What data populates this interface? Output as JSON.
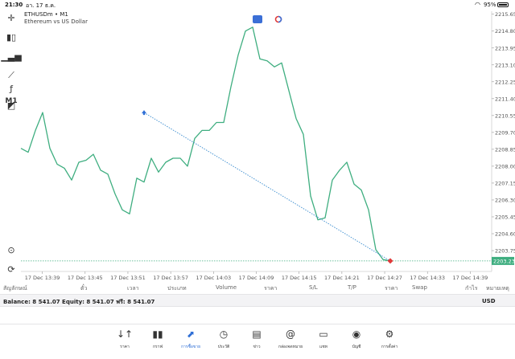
{
  "status_bar": {
    "time": "21:30",
    "date": "อา. 17 ธ.ค.",
    "battery": "95%"
  },
  "symbol": {
    "title": "ETHUSDm • M1",
    "subtitle": "Ethereum vs US Dollar"
  },
  "toolbar": {
    "timeframe": "M1"
  },
  "chart_data": {
    "type": "line",
    "ylim": [
      2202.7,
      2215.8
    ],
    "yticks": [
      "2215.65",
      "2214.80",
      "2213.95",
      "2213.10",
      "2212.25",
      "2211.40",
      "2210.55",
      "2209.70",
      "2208.85",
      "2208.00",
      "2207.15",
      "2206.30",
      "2205.45",
      "2204.60",
      "2203.75"
    ],
    "x_labels": [
      "17 Dec 13:39",
      "17 Dec 13:45",
      "17 Dec 13:51",
      "17 Dec 13:57",
      "17 Dec 14:03",
      "17 Dec 14:09",
      "17 Dec 14:15",
      "17 Dec 14:21",
      "17 Dec 14:27",
      "17 Dec 14:33",
      "17 Dec 14:39"
    ],
    "x_range": [
      0,
      65
    ],
    "series": [
      {
        "x": [
          0,
          1,
          2,
          3,
          4,
          5,
          6,
          7,
          8,
          9,
          10,
          11,
          12,
          13,
          14,
          15,
          16,
          17,
          18,
          19,
          20,
          21,
          22,
          23,
          24,
          25,
          26,
          27,
          28,
          29,
          30,
          31,
          32,
          33,
          34,
          35,
          36,
          37,
          38,
          39,
          40,
          41,
          42,
          43,
          44,
          45,
          46,
          47,
          48,
          49,
          50,
          51
        ],
        "values": [
          2208.9,
          2208.7,
          2209.8,
          2210.7,
          2208.9,
          2208.1,
          2207.9,
          2207.3,
          2208.2,
          2208.3,
          2208.6,
          2207.8,
          2207.6,
          2206.6,
          2205.8,
          2205.6,
          2207.4,
          2207.2,
          2208.4,
          2207.7,
          2208.2,
          2208.4,
          2208.4,
          2208.0,
          2209.4,
          2209.8,
          2209.8,
          2210.2,
          2210.2,
          2212.0,
          2213.6,
          2214.8,
          2215.0,
          2213.4,
          2213.3,
          2213.0,
          2213.2,
          2211.8,
          2210.4,
          2209.6,
          2206.5,
          2205.3,
          2205.4,
          2207.3,
          2207.8,
          2208.2,
          2207.1,
          2206.8,
          2205.8,
          2203.8,
          2203.3,
          2203.23
        ]
      }
    ],
    "trade_line": {
      "from": [
        17,
        2210.7
      ],
      "to": [
        51,
        2203.23
      ]
    },
    "current_price": 2203.23,
    "current_price_label": "2203.23",
    "colors": {
      "line": "#3fae80",
      "trade_line": "#3a8ccf",
      "buy_marker": "#2f6fd6",
      "sell_marker": "#e03a3a",
      "price_line": "#3fae80"
    }
  },
  "positions_header": [
    "สัญลักษณ์",
    "ตั๋ว",
    "เวลา",
    "ประเภท",
    "Volume",
    "ราคา",
    "S/L",
    "T/P",
    "ราคา",
    "Swap",
    "กำไร",
    "หมายเหตุ"
  ],
  "account": {
    "summary": "Balance: 8 541.07 Equity: 8 541.07 ฟรี: 8 541.07",
    "currency": "USD"
  },
  "tabs": [
    {
      "icon": "↓↑",
      "label": "ราคา"
    },
    {
      "icon": "▮▮",
      "label": "กราฟ"
    },
    {
      "icon": "⬈",
      "label": "การซื้อขาย"
    },
    {
      "icon": "◷",
      "label": "ประวัติ"
    },
    {
      "icon": "▤",
      "label": "ข่าว"
    },
    {
      "icon": "@",
      "label": "กล่องจดหมาย"
    },
    {
      "icon": "▭",
      "label": "แชท"
    },
    {
      "icon": "◉",
      "label": "บัญชี"
    },
    {
      "icon": "⚙",
      "label": "การตั้งค่า"
    }
  ]
}
